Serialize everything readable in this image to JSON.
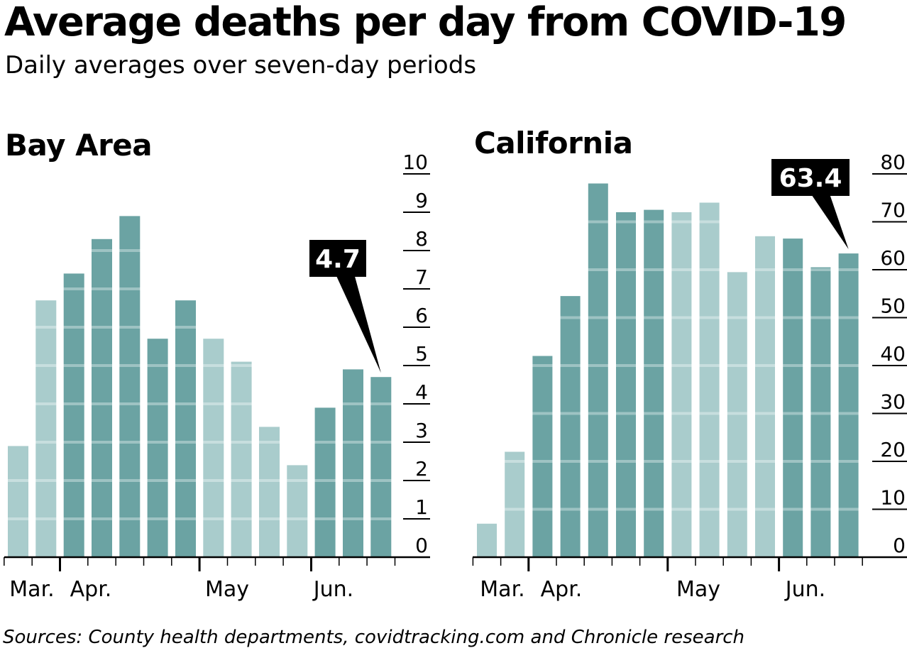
{
  "title": "Average deaths per day from COVID-19",
  "subtitle": "Daily averages over seven-day periods",
  "source": "Sources: County health departments, covidtracking.com and Chronicle research",
  "colors": {
    "dark_bar": "#6ba3a3",
    "light_bar": "#a9cccc",
    "band": "#ffffff",
    "callout_bg": "#000000",
    "callout_text": "#ffffff"
  },
  "chart_data": [
    {
      "type": "bar",
      "title": "Bay Area",
      "ylim": [
        0,
        10
      ],
      "yticks": [
        "0",
        "1",
        "2",
        "3",
        "4",
        "5",
        "6",
        "7",
        "8",
        "9",
        "10"
      ],
      "x_month_labels": [
        "Mar.",
        "Apr.",
        "May",
        "Jun."
      ],
      "values": [
        2.9,
        6.7,
        7.4,
        8.3,
        8.9,
        5.7,
        6.7,
        5.7,
        5.1,
        3.4,
        2.4,
        3.9,
        4.9,
        4.7
      ],
      "shade": [
        "light",
        "light",
        "dark",
        "dark",
        "dark",
        "dark",
        "dark",
        "light",
        "light",
        "light",
        "light",
        "dark",
        "dark",
        "dark"
      ],
      "callout": {
        "label": "4.7",
        "bar_index": 13
      }
    },
    {
      "type": "bar",
      "title": "California",
      "ylim": [
        0,
        80
      ],
      "yticks": [
        "0",
        "10",
        "20",
        "30",
        "40",
        "50",
        "60",
        "70",
        "80"
      ],
      "x_month_labels": [
        "Mar.",
        "Apr.",
        "May",
        "Jun."
      ],
      "values": [
        7,
        22,
        42,
        54.5,
        78,
        72,
        72.5,
        72,
        74,
        59.5,
        67,
        66.5,
        60.5,
        63.4
      ],
      "shade": [
        "light",
        "light",
        "dark",
        "dark",
        "dark",
        "dark",
        "dark",
        "light",
        "light",
        "light",
        "light",
        "dark",
        "dark",
        "dark"
      ],
      "callout": {
        "label": "63.4",
        "bar_index": 13
      }
    }
  ]
}
